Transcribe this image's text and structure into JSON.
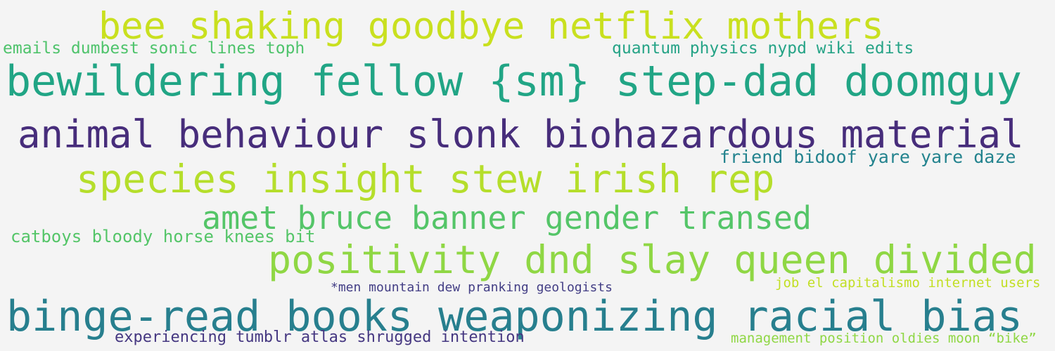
{
  "phrases": [
    {
      "text": "bee shaking goodbye netflix mothers",
      "color": "#c9e01f"
    },
    {
      "text": "emails dumbest sonic lines toph",
      "color": "#4ec36b"
    },
    {
      "text": "quantum physics nypd wiki edits",
      "color": "#25a386"
    },
    {
      "text": "bewildering fellow {sm} step-dad doomguy",
      "color": "#21a585"
    },
    {
      "text": "animal behaviour slonk biohazardous material",
      "color": "#472d7b"
    },
    {
      "text": "friend bidoof yare yare daze",
      "color": "#23838e"
    },
    {
      "text": "species insight stew irish rep",
      "color": "#b5de2b"
    },
    {
      "text": "amet bruce banner gender transed",
      "color": "#54c568"
    },
    {
      "text": "catboys bloody horse knees bit",
      "color": "#54c568"
    },
    {
      "text": "positivity dnd slay queen divided",
      "color": "#8fd744"
    },
    {
      "text": "*men mountain dew pranking geologists",
      "color": "#433e85"
    },
    {
      "text": "job el capitalismo internet users",
      "color": "#c2df23"
    },
    {
      "text": "binge-read books weaponizing racial bias",
      "color": "#277f8e"
    },
    {
      "text": "experiencing tumblr atlas shrugged intention",
      "color": "#453781"
    },
    {
      "text": "management position oldies moon “bike”",
      "color": "#8fd744"
    }
  ]
}
